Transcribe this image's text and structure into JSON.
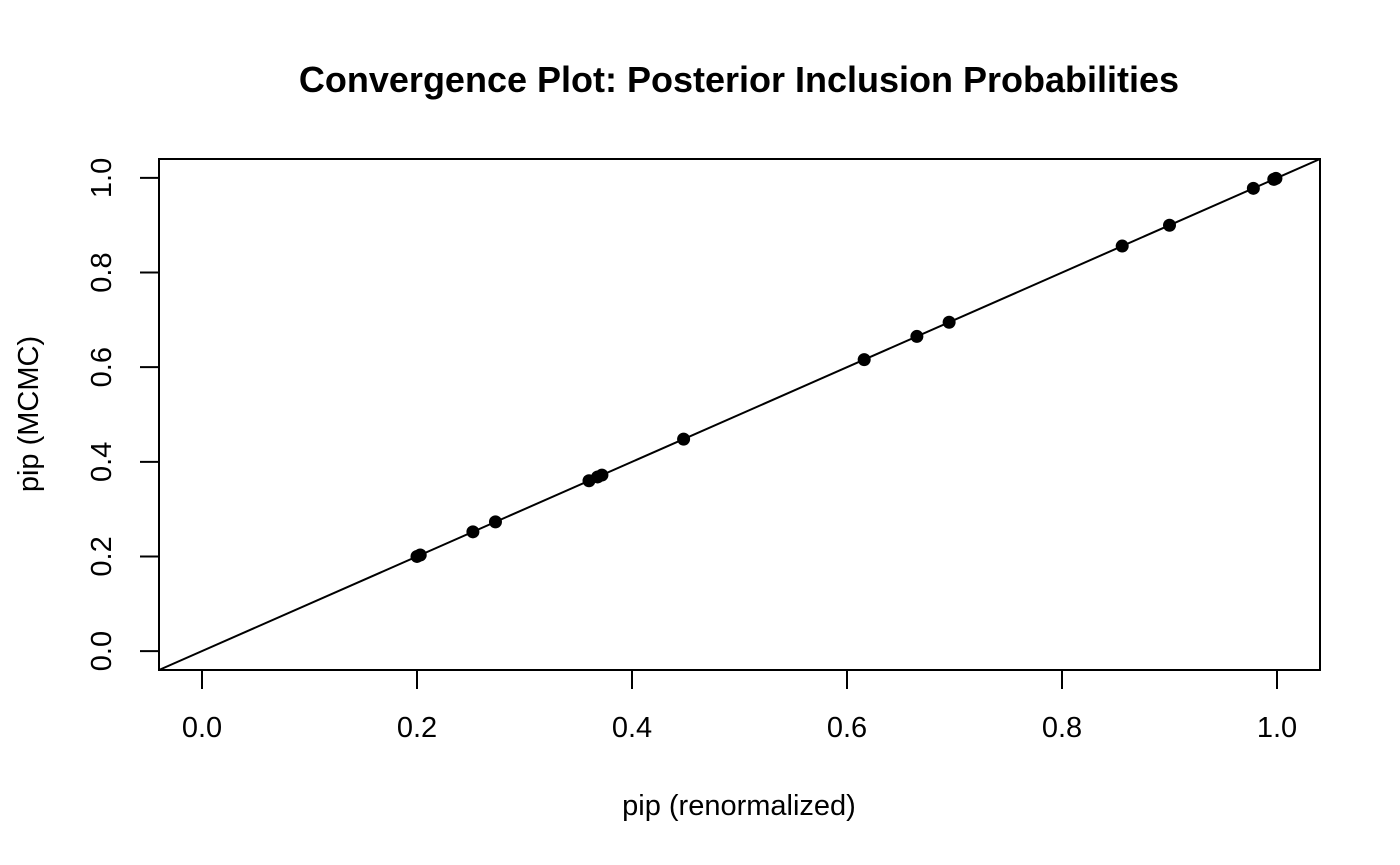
{
  "chart_data": {
    "type": "scatter",
    "title": "Convergence Plot: Posterior Inclusion Probabilities",
    "xlabel": "pip (renormalized)",
    "ylabel": "pip (MCMC)",
    "xlim": [
      -0.04,
      1.04
    ],
    "ylim": [
      -0.04,
      1.04
    ],
    "x_ticks": [
      0.0,
      0.2,
      0.4,
      0.6,
      0.8,
      1.0
    ],
    "x_tick_labels": [
      "0.0",
      "0.2",
      "0.4",
      "0.6",
      "0.8",
      "1.0"
    ],
    "y_ticks": [
      0.0,
      0.2,
      0.4,
      0.6,
      0.8,
      1.0
    ],
    "y_tick_labels": [
      "0.0",
      "0.2",
      "0.4",
      "0.6",
      "0.8",
      "1.0"
    ],
    "grid": false,
    "reference_line": {
      "intercept": 0,
      "slope": 1
    },
    "points": {
      "x": [
        0.2,
        0.203,
        0.252,
        0.273,
        0.36,
        0.368,
        0.372,
        0.448,
        0.616,
        0.665,
        0.695,
        0.856,
        0.9,
        0.978,
        0.997,
        0.999
      ],
      "y": [
        0.2,
        0.203,
        0.252,
        0.273,
        0.36,
        0.368,
        0.372,
        0.448,
        0.616,
        0.665,
        0.695,
        0.856,
        0.9,
        0.978,
        0.997,
        0.999
      ]
    },
    "point_color": "#000000",
    "line_color": "#000000"
  }
}
